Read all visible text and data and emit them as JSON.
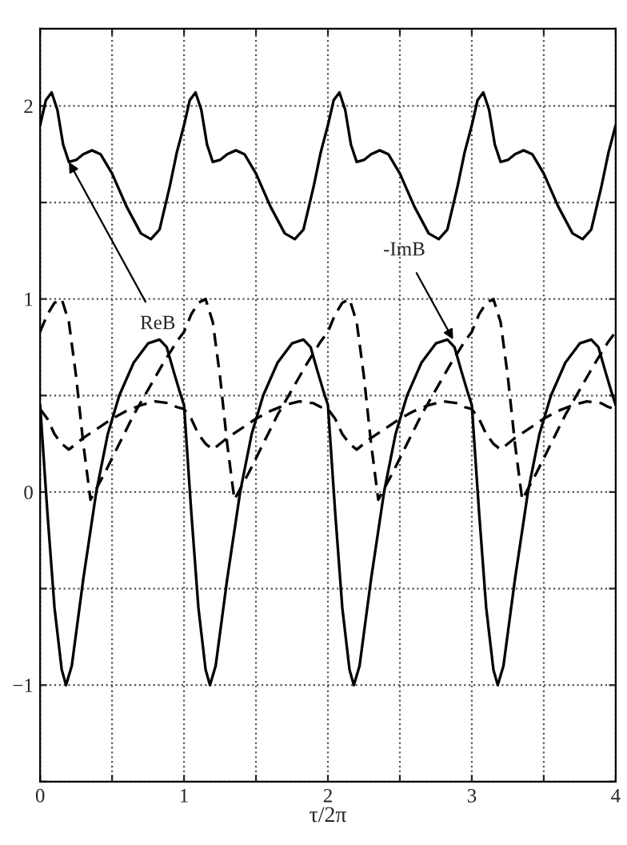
{
  "chart_data": {
    "type": "line",
    "xlabel": "τ/2π",
    "xlim": [
      0,
      4
    ],
    "ylim": [
      -1.5,
      2.4
    ],
    "xticks": [
      0,
      {
        "value": 0.5,
        "label": null
      },
      1,
      {
        "value": 1.5,
        "label": null
      },
      2,
      {
        "value": 2.5,
        "label": null
      },
      3,
      {
        "value": 3.5,
        "label": null
      },
      4
    ],
    "yticks": [
      {
        "value": -1.5,
        "label": null
      },
      {
        "value": -1,
        "label": "−1"
      },
      {
        "value": -0.5,
        "label": null
      },
      0,
      {
        "value": 0.5,
        "label": null
      },
      1,
      {
        "value": 1.5,
        "label": null
      },
      2
    ],
    "grid": true,
    "marker": "none",
    "legend": false,
    "annotations": [
      {
        "text": "ReB",
        "x": 0.2,
        "y": 1.71
      },
      {
        "text": "-ImB",
        "x": 2.87,
        "y": 0.79
      }
    ],
    "series": [
      {
        "color": "#000000",
        "line_style": "solid",
        "x": [
          0,
          0.04,
          0.08,
          0.12,
          0.16,
          0.2,
          0.25,
          0.3,
          0.36,
          0.42,
          0.5,
          0.6,
          0.7,
          0.77,
          0.83,
          0.9,
          0.95,
          1,
          1.04,
          1.08,
          1.12,
          1.16,
          1.2,
          1.25,
          1.3,
          1.36,
          1.42,
          1.5,
          1.6,
          1.7,
          1.77,
          1.83,
          1.9,
          1.95,
          2,
          2.04,
          2.08,
          2.12,
          2.16,
          2.2,
          2.25,
          2.3,
          2.36,
          2.42,
          2.5,
          2.6,
          2.7,
          2.77,
          2.83,
          2.9,
          2.95,
          3,
          3.04,
          3.08,
          3.12,
          3.16,
          3.2,
          3.25,
          3.3,
          3.36,
          3.42,
          3.5,
          3.6,
          3.7,
          3.77,
          3.83,
          3.9,
          3.95,
          4
        ],
        "values": [
          1.9,
          2.03,
          2.07,
          1.98,
          1.8,
          1.71,
          1.72,
          1.75,
          1.77,
          1.75,
          1.65,
          1.48,
          1.34,
          1.31,
          1.36,
          1.58,
          1.76,
          1.9,
          2.03,
          2.07,
          1.98,
          1.8,
          1.71,
          1.72,
          1.75,
          1.77,
          1.75,
          1.65,
          1.48,
          1.34,
          1.31,
          1.36,
          1.58,
          1.76,
          1.9,
          2.03,
          2.07,
          1.98,
          1.8,
          1.71,
          1.72,
          1.75,
          1.77,
          1.75,
          1.65,
          1.48,
          1.34,
          1.31,
          1.36,
          1.58,
          1.76,
          1.9,
          2.03,
          2.07,
          1.98,
          1.8,
          1.71,
          1.72,
          1.75,
          1.77,
          1.75,
          1.65,
          1.48,
          1.34,
          1.31,
          1.36,
          1.58,
          1.76,
          1.9
        ]
      },
      {
        "color": "#000000",
        "line_style": "solid",
        "x": [
          0,
          0.05,
          0.1,
          0.15,
          0.18,
          0.22,
          0.3,
          0.39,
          0.47,
          0.55,
          0.65,
          0.75,
          0.83,
          0.88,
          0.93,
          0.97,
          1,
          1.05,
          1.1,
          1.15,
          1.18,
          1.22,
          1.3,
          1.39,
          1.47,
          1.55,
          1.65,
          1.75,
          1.83,
          1.88,
          1.93,
          1.97,
          2,
          2.05,
          2.1,
          2.15,
          2.18,
          2.22,
          2.3,
          2.39,
          2.47,
          2.55,
          2.65,
          2.75,
          2.83,
          2.88,
          2.93,
          2.97,
          3,
          3.05,
          3.1,
          3.15,
          3.18,
          3.22,
          3.3,
          3.39,
          3.47,
          3.55,
          3.65,
          3.75,
          3.83,
          3.88,
          3.93,
          3.97,
          4
        ],
        "values": [
          0.45,
          -0.1,
          -0.6,
          -0.92,
          -1.0,
          -0.9,
          -0.45,
          0.0,
          0.3,
          0.5,
          0.67,
          0.77,
          0.79,
          0.75,
          0.62,
          0.52,
          0.45,
          -0.1,
          -0.6,
          -0.92,
          -1.0,
          -0.9,
          -0.45,
          0.0,
          0.3,
          0.5,
          0.67,
          0.77,
          0.79,
          0.75,
          0.62,
          0.52,
          0.45,
          -0.1,
          -0.6,
          -0.92,
          -1.0,
          -0.9,
          -0.45,
          0.0,
          0.3,
          0.5,
          0.67,
          0.77,
          0.79,
          0.75,
          0.62,
          0.52,
          0.45,
          -0.1,
          -0.6,
          -0.92,
          -1.0,
          -0.9,
          -0.45,
          0.0,
          0.3,
          0.5,
          0.67,
          0.77,
          0.79,
          0.75,
          0.62,
          0.52,
          0.45
        ]
      },
      {
        "color": "#000000",
        "line_style": "dashed",
        "x": [
          0,
          0.05,
          0.1,
          0.15,
          0.2,
          0.25,
          0.3,
          0.35,
          0.45,
          0.55,
          0.65,
          0.75,
          0.85,
          0.95,
          1,
          1.05,
          1.1,
          1.15,
          1.2,
          1.25,
          1.3,
          1.35,
          1.45,
          1.55,
          1.65,
          1.75,
          1.85,
          1.95,
          2,
          2.05,
          2.1,
          2.15,
          2.2,
          2.25,
          2.3,
          2.35,
          2.45,
          2.55,
          2.65,
          2.75,
          2.85,
          2.95,
          3,
          3.05,
          3.1,
          3.15,
          3.2,
          3.25,
          3.3,
          3.35,
          3.45,
          3.55,
          3.65,
          3.75,
          3.85,
          3.95,
          4
        ],
        "values": [
          0.83,
          0.92,
          0.98,
          1.0,
          0.88,
          0.6,
          0.25,
          -0.04,
          0.1,
          0.25,
          0.4,
          0.53,
          0.66,
          0.78,
          0.83,
          0.92,
          0.98,
          1.0,
          0.88,
          0.6,
          0.25,
          -0.04,
          0.1,
          0.25,
          0.4,
          0.53,
          0.66,
          0.78,
          0.83,
          0.92,
          0.98,
          1.0,
          0.88,
          0.6,
          0.25,
          -0.04,
          0.1,
          0.25,
          0.4,
          0.53,
          0.66,
          0.78,
          0.83,
          0.92,
          0.98,
          1.0,
          0.88,
          0.6,
          0.25,
          -0.04,
          0.1,
          0.25,
          0.4,
          0.53,
          0.66,
          0.78,
          0.83
        ]
      },
      {
        "color": "#000000",
        "line_style": "dashed",
        "x": [
          0,
          0.05,
          0.1,
          0.15,
          0.2,
          0.3,
          0.4,
          0.5,
          0.6,
          0.7,
          0.8,
          0.9,
          0.95,
          1,
          1.05,
          1.1,
          1.15,
          1.2,
          1.3,
          1.4,
          1.5,
          1.6,
          1.7,
          1.8,
          1.9,
          1.95,
          2,
          2.05,
          2.1,
          2.15,
          2.2,
          2.3,
          2.4,
          2.5,
          2.6,
          2.7,
          2.8,
          2.9,
          2.95,
          3,
          3.05,
          3.1,
          3.15,
          3.2,
          3.3,
          3.4,
          3.5,
          3.6,
          3.7,
          3.8,
          3.9,
          3.95,
          4
        ],
        "values": [
          0.43,
          0.38,
          0.3,
          0.25,
          0.22,
          0.28,
          0.33,
          0.38,
          0.42,
          0.45,
          0.47,
          0.46,
          0.44,
          0.43,
          0.38,
          0.3,
          0.25,
          0.22,
          0.28,
          0.33,
          0.38,
          0.42,
          0.45,
          0.47,
          0.46,
          0.44,
          0.43,
          0.38,
          0.3,
          0.25,
          0.22,
          0.28,
          0.33,
          0.38,
          0.42,
          0.45,
          0.47,
          0.46,
          0.44,
          0.43,
          0.38,
          0.3,
          0.25,
          0.22,
          0.28,
          0.33,
          0.38,
          0.42,
          0.45,
          0.47,
          0.46,
          0.44,
          0.43
        ]
      }
    ]
  }
}
